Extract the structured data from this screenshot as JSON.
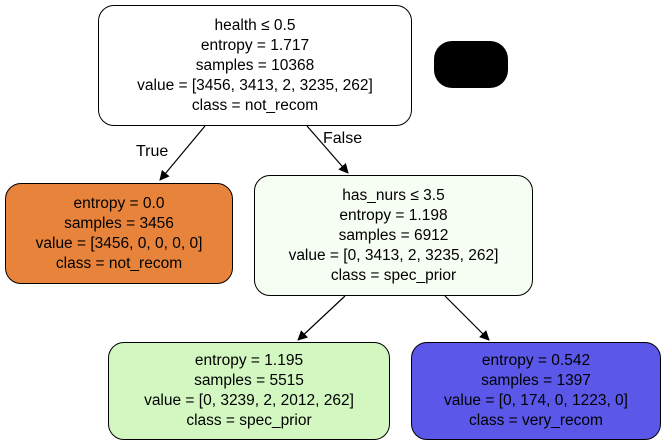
{
  "tree": {
    "nodes": [
      {
        "id": "root",
        "lines": [
          "health ≤ 0.5",
          "entropy = 1.717",
          "samples = 10368",
          "value = [3456, 3413, 2, 3235, 262]",
          "class = not_recom"
        ],
        "fill": "#ffffff"
      },
      {
        "id": "left",
        "lines": [
          "entropy = 0.0",
          "samples = 3456",
          "value = [3456, 0, 0, 0, 0]",
          "class = not_recom"
        ],
        "fill": "#e8833b"
      },
      {
        "id": "right",
        "lines": [
          "has_nurs ≤ 3.5",
          "entropy = 1.198",
          "samples = 6912",
          "value = [0, 3413, 2, 3235, 262]",
          "class = spec_prior"
        ],
        "fill": "#f6fdf3"
      },
      {
        "id": "right-left",
        "lines": [
          "entropy = 1.195",
          "samples = 5515",
          "value = [0, 3239, 2, 2012, 262]",
          "class = spec_prior"
        ],
        "fill": "#d2f7c0"
      },
      {
        "id": "right-right",
        "lines": [
          "entropy = 0.542",
          "samples = 1397",
          "value = [0, 174, 0, 1223, 0]",
          "class = very_recom"
        ],
        "fill": "#5a57e9"
      }
    ],
    "edge_labels": {
      "true": "True",
      "false": "False"
    },
    "legend_box_color": "#000000"
  }
}
